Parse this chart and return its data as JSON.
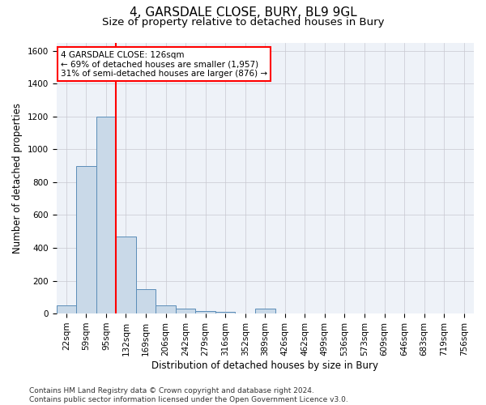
{
  "title": "4, GARSDALE CLOSE, BURY, BL9 9GL",
  "subtitle": "Size of property relative to detached houses in Bury",
  "xlabel": "Distribution of detached houses by size in Bury",
  "ylabel": "Number of detached properties",
  "footer": "Contains HM Land Registry data © Crown copyright and database right 2024.\nContains public sector information licensed under the Open Government Licence v3.0.",
  "bin_labels": [
    "22sqm",
    "59sqm",
    "95sqm",
    "132sqm",
    "169sqm",
    "206sqm",
    "242sqm",
    "279sqm",
    "316sqm",
    "352sqm",
    "389sqm",
    "426sqm",
    "462sqm",
    "499sqm",
    "536sqm",
    "573sqm",
    "609sqm",
    "646sqm",
    "683sqm",
    "719sqm",
    "756sqm"
  ],
  "bar_values": [
    50,
    900,
    1200,
    470,
    150,
    50,
    30,
    15,
    10,
    0,
    30,
    0,
    0,
    0,
    0,
    0,
    0,
    0,
    0,
    0,
    0
  ],
  "bar_color": "#c9d9e8",
  "bar_edgecolor": "#5b8db8",
  "grid_color": "#c8c8d0",
  "vline_x": 2.5,
  "vline_color": "red",
  "annotation_line1": "4 GARSDALE CLOSE: 126sqm",
  "annotation_line2": "← 69% of detached houses are smaller (1,957)",
  "annotation_line3": "31% of semi-detached houses are larger (876) →",
  "annotation_box_color": "white",
  "annotation_box_edgecolor": "red",
  "ylim": [
    0,
    1650
  ],
  "yticks": [
    0,
    200,
    400,
    600,
    800,
    1000,
    1200,
    1400,
    1600
  ],
  "title_fontsize": 11,
  "subtitle_fontsize": 9.5,
  "axis_label_fontsize": 8.5,
  "tick_fontsize": 7.5,
  "annotation_fontsize": 7.5,
  "footer_fontsize": 6.5,
  "background_color": "white"
}
